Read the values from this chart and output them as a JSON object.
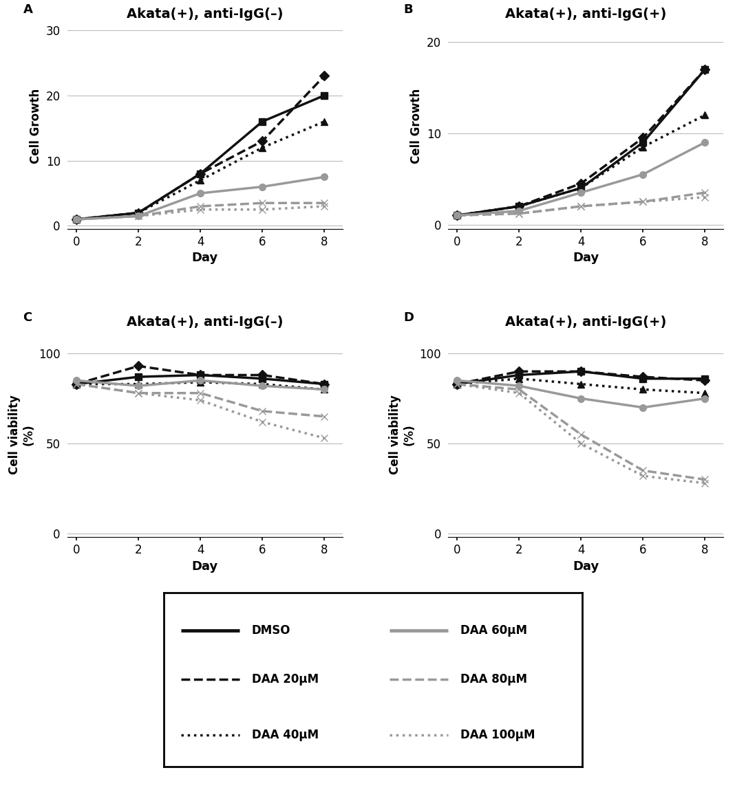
{
  "days": [
    0,
    2,
    4,
    6,
    8
  ],
  "A_growth": {
    "DMSO": [
      1,
      2,
      8,
      16,
      20
    ],
    "DAA20": [
      1,
      2,
      8,
      13,
      23
    ],
    "DAA40": [
      1,
      2,
      7,
      12,
      16
    ],
    "DAA60": [
      1,
      1.5,
      5,
      6,
      7.5
    ],
    "DAA80": [
      1,
      1.5,
      3,
      3.5,
      3.5
    ],
    "DAA100": [
      1,
      1.5,
      2.5,
      2.5,
      3
    ]
  },
  "B_growth": {
    "DMSO": [
      1,
      2,
      4,
      9,
      17
    ],
    "DAA20": [
      1,
      2,
      4.5,
      9.5,
      17
    ],
    "DAA40": [
      1,
      2,
      4,
      8.5,
      12
    ],
    "DAA60": [
      1,
      1.5,
      3.5,
      5.5,
      9
    ],
    "DAA80": [
      1,
      1.2,
      2,
      2.5,
      3.5
    ],
    "DAA100": [
      1,
      1.2,
      2,
      2.5,
      3
    ]
  },
  "C_viability": {
    "DMSO": [
      83,
      87,
      88,
      86,
      83
    ],
    "DAA20": [
      83,
      93,
      88,
      88,
      83
    ],
    "DAA40": [
      83,
      83,
      84,
      83,
      80
    ],
    "DAA60": [
      85,
      82,
      85,
      82,
      80
    ],
    "DAA80": [
      83,
      78,
      78,
      68,
      65
    ],
    "DAA100": [
      83,
      78,
      74,
      62,
      53
    ]
  },
  "D_viability": {
    "DMSO": [
      83,
      88,
      90,
      86,
      86
    ],
    "DAA20": [
      83,
      90,
      90,
      87,
      85
    ],
    "DAA40": [
      83,
      86,
      83,
      80,
      78
    ],
    "DAA60": [
      85,
      82,
      75,
      70,
      75
    ],
    "DAA80": [
      83,
      80,
      55,
      35,
      30
    ],
    "DAA100": [
      83,
      78,
      50,
      32,
      28
    ]
  },
  "line_styles": {
    "DMSO": {
      "color": "#111111",
      "linestyle": "-",
      "marker": "s",
      "lw": 2.5,
      "markersize": 7
    },
    "DAA20": {
      "color": "#111111",
      "linestyle": "--",
      "marker": "D",
      "lw": 2.5,
      "markersize": 7
    },
    "DAA40": {
      "color": "#111111",
      "linestyle": ":",
      "marker": "^",
      "lw": 2.5,
      "markersize": 7
    },
    "DAA60": {
      "color": "#999999",
      "linestyle": "-",
      "marker": "o",
      "lw": 2.5,
      "markersize": 7
    },
    "DAA80": {
      "color": "#999999",
      "linestyle": "--",
      "marker": "x",
      "lw": 2.5,
      "markersize": 7
    },
    "DAA100": {
      "color": "#999999",
      "linestyle": ":",
      "marker": "x",
      "lw": 2.5,
      "markersize": 7
    }
  },
  "legend_styles": {
    "DMSO": {
      "color": "#111111",
      "linestyle": "-",
      "lw": 3.5
    },
    "DAA20": {
      "color": "#111111",
      "linestyle": "--",
      "lw": 2.5
    },
    "DAA40": {
      "color": "#111111",
      "linestyle": ":",
      "lw": 2.5
    },
    "DAA60": {
      "color": "#999999",
      "linestyle": "-",
      "lw": 3.5
    },
    "DAA80": {
      "color": "#999999",
      "linestyle": "--",
      "lw": 2.5
    },
    "DAA100": {
      "color": "#999999",
      "linestyle": ":",
      "lw": 2.5
    }
  },
  "legend_labels": {
    "DMSO": "DMSO",
    "DAA20": "DAA 20μM",
    "DAA40": "DAA 40μM",
    "DAA60": "DAA 60μM",
    "DAA80": "DAA 80μM",
    "DAA100": "DAA 100μM"
  },
  "titles": {
    "A": "Akata(+), anti-IgG(–)",
    "B": "Akata(+), anti-IgG(+)",
    "C": "Akata(+), anti-IgG(–)",
    "D": "Akata(+), anti-IgG(+)"
  },
  "xlabel": "Day",
  "ylabel_growth": "Cell Growth",
  "ylabel_viability": "Cell viability\n(%)"
}
